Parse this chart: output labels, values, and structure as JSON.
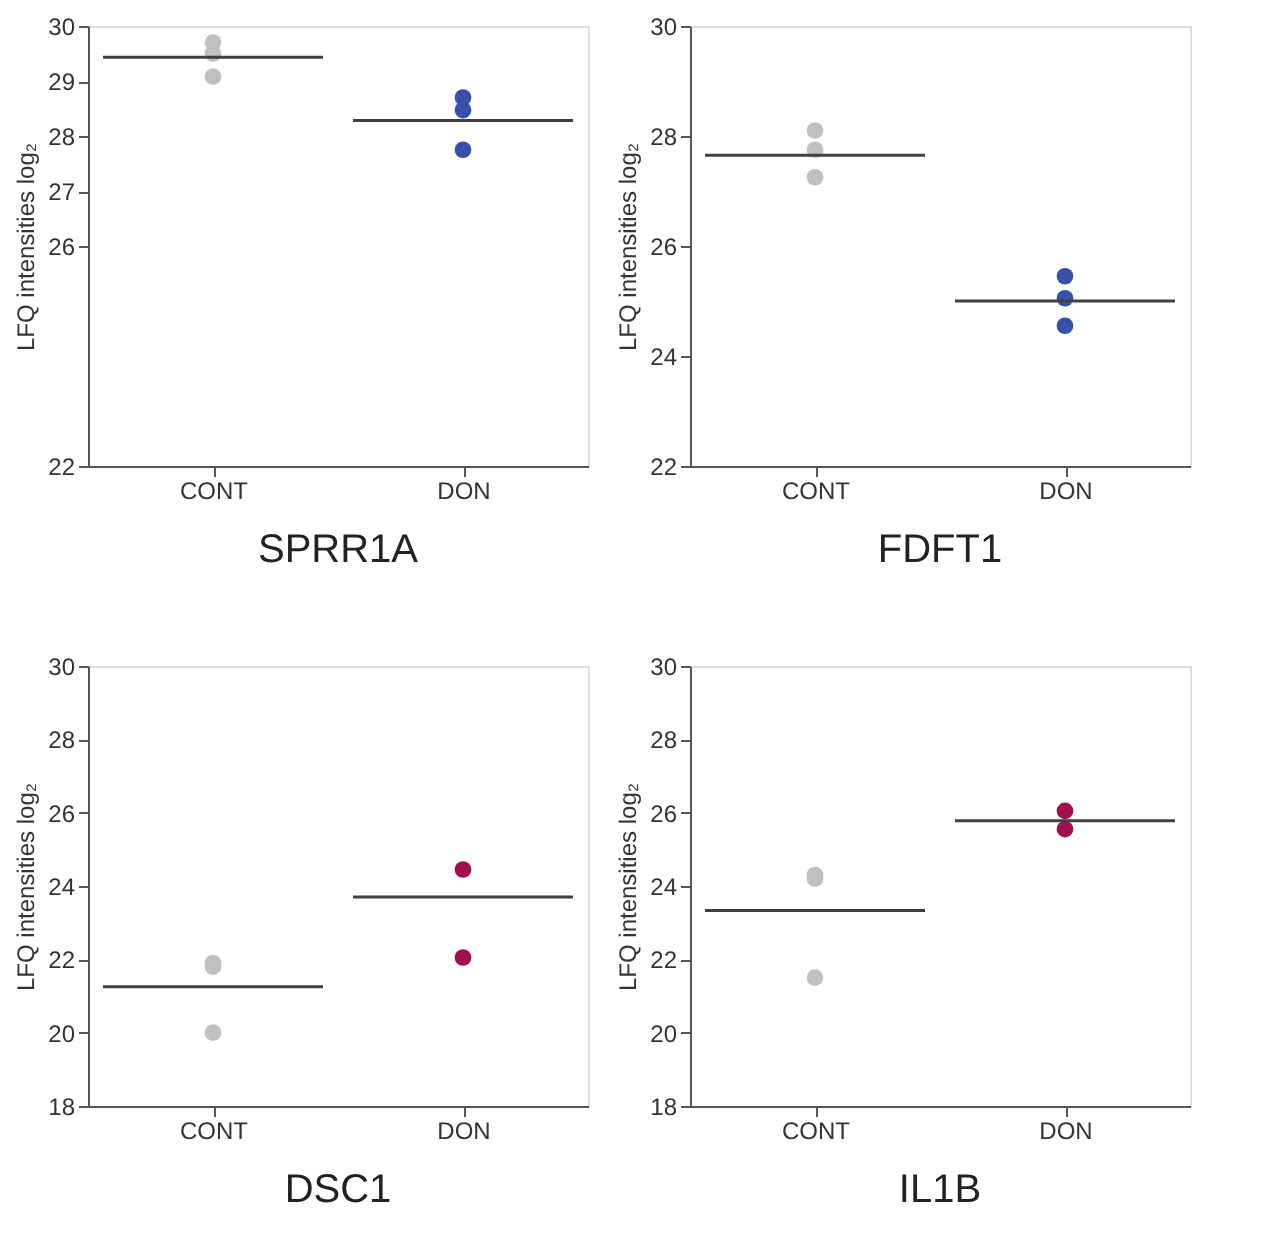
{
  "chart_data": [
    {
      "type": "scatter",
      "title": "SPRR1A",
      "ylabel": "LFQ intensities log₂",
      "categories": [
        "CONT",
        "DON"
      ],
      "ylim": [
        22,
        30
      ],
      "yticks": [
        22,
        26,
        27,
        28,
        29,
        30
      ],
      "grid": false,
      "series": [
        {
          "type": "scatter",
          "x": [
            "CONT",
            "CONT",
            "CONT"
          ],
          "values": [
            29.7,
            29.5,
            29.08
          ],
          "color": "#c0c0c0"
        },
        {
          "type": "scatter",
          "x": [
            "DON",
            "DON",
            "DON"
          ],
          "values": [
            28.7,
            28.47,
            27.75
          ],
          "color": "#3a4fa8"
        }
      ],
      "ref_lines": [
        {
          "axis": "y",
          "value": 29.43,
          "color": "#404040"
        },
        {
          "axis": "y",
          "value": 28.28,
          "color": "#404040"
        }
      ]
    },
    {
      "type": "scatter",
      "title": "FDFT1",
      "ylabel": "LFQ intensities log₂",
      "categories": [
        "CONT",
        "DON"
      ],
      "ylim": [
        22,
        30
      ],
      "yticks": [
        22,
        24,
        26,
        28,
        30
      ],
      "grid": false,
      "series": [
        {
          "type": "scatter",
          "x": [
            "CONT",
            "CONT",
            "CONT"
          ],
          "values": [
            28.1,
            27.75,
            27.25
          ],
          "color": "#c0c0c0"
        },
        {
          "type": "scatter",
          "x": [
            "DON",
            "DON",
            "DON"
          ],
          "values": [
            25.45,
            25.05,
            24.55
          ],
          "color": "#3a4fa8"
        }
      ],
      "ref_lines": [
        {
          "axis": "y",
          "value": 27.65,
          "color": "#404040"
        },
        {
          "axis": "y",
          "value": 25.0,
          "color": "#404040"
        }
      ]
    },
    {
      "type": "scatter",
      "title": "DSC1",
      "ylabel": "LFQ intensities log₂",
      "categories": [
        "CONT",
        "DON"
      ],
      "ylim": [
        18,
        30
      ],
      "yticks": [
        18,
        20,
        22,
        24,
        26,
        28,
        30
      ],
      "grid": false,
      "series": [
        {
          "type": "scatter",
          "x": [
            "CONT",
            "CONT",
            "CONT"
          ],
          "values": [
            21.9,
            21.8,
            20.0
          ],
          "color": "#c0c0c0"
        },
        {
          "type": "scatter",
          "x": [
            "DON",
            "DON"
          ],
          "values": [
            24.45,
            22.05
          ],
          "color": "#a0104f"
        }
      ],
      "ref_lines": [
        {
          "axis": "y",
          "value": 21.25,
          "color": "#404040"
        },
        {
          "axis": "y",
          "value": 23.7,
          "color": "#404040"
        }
      ]
    },
    {
      "type": "scatter",
      "title": "IL1B",
      "ylabel": "LFQ intensities log₂",
      "categories": [
        "CONT",
        "DON"
      ],
      "ylim": [
        18,
        30
      ],
      "yticks": [
        18,
        20,
        22,
        24,
        26,
        28,
        30
      ],
      "grid": false,
      "series": [
        {
          "type": "scatter",
          "x": [
            "CONT",
            "CONT",
            "CONT"
          ],
          "values": [
            24.2,
            24.3,
            21.5
          ],
          "color": "#c0c0c0"
        },
        {
          "type": "scatter",
          "x": [
            "DON",
            "DON"
          ],
          "values": [
            26.05,
            25.55
          ],
          "color": "#a0104f"
        }
      ],
      "ref_lines": [
        {
          "axis": "y",
          "value": 23.33,
          "color": "#404040"
        },
        {
          "axis": "y",
          "value": 25.78,
          "color": "#404040"
        }
      ]
    }
  ]
}
